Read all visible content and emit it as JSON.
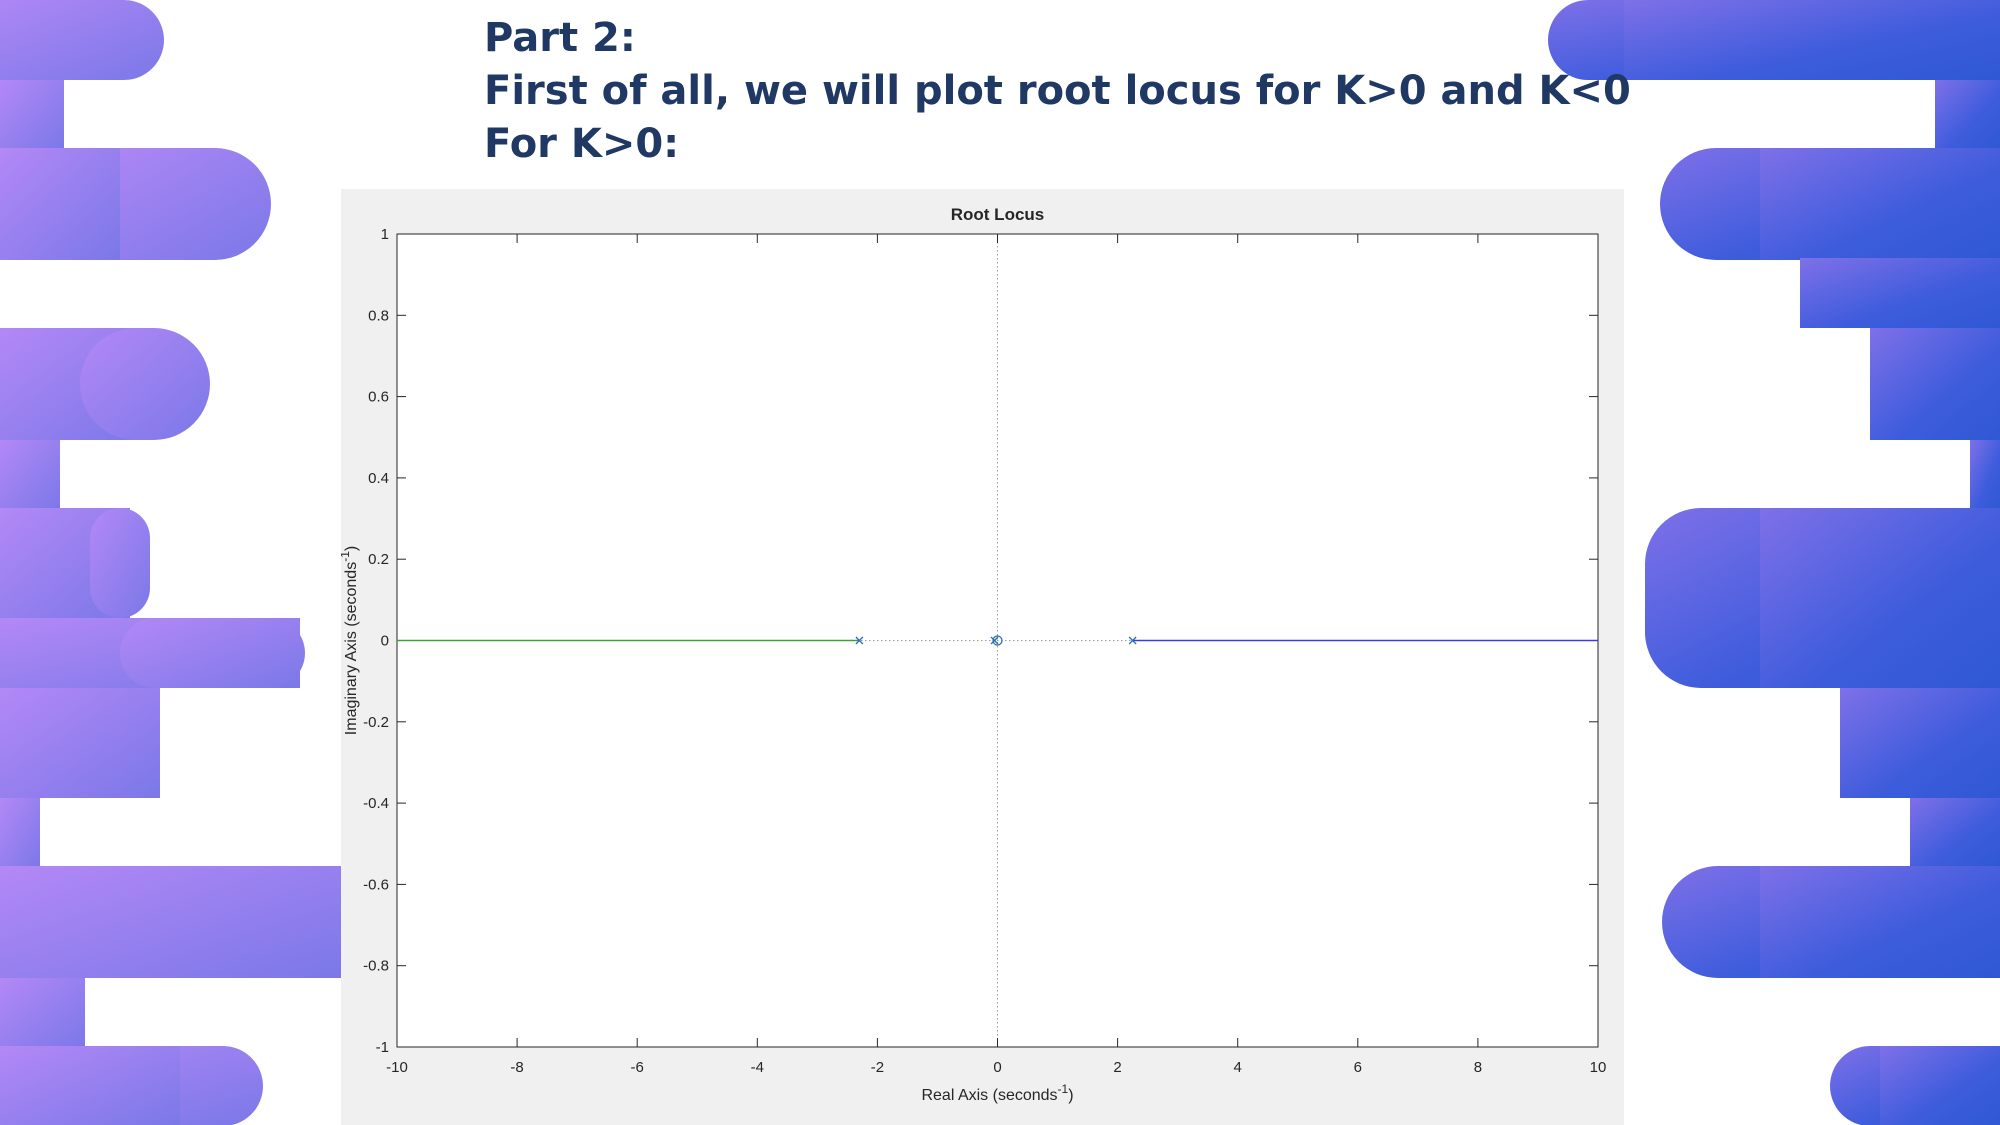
{
  "slide": {
    "heading_lines": [
      "Part 2:",
      "First of all, we will plot root locus for K>0 and K<0",
      "For K>0:"
    ]
  },
  "colors": {
    "heading": "#1f3864",
    "blob_gradient_start": "#b388f6",
    "blob_gradient_end": "#3158d6",
    "branch_left": "#3aa03a",
    "branch_right": "#3a3ae0",
    "markers": "#2a6fb3"
  },
  "chart_data": {
    "type": "line",
    "title": "Root Locus",
    "xlabel": "Real Axis (seconds",
    "xlabel_sup": "-1",
    "xlabel_tail": ")",
    "ylabel": "Imaginary Axis (seconds",
    "ylabel_sup": "-1",
    "ylabel_tail": ")",
    "xlim": [
      -10,
      10
    ],
    "ylim": [
      -1,
      1
    ],
    "xticks": [
      -10,
      -8,
      -6,
      -4,
      -2,
      0,
      2,
      4,
      6,
      8,
      10
    ],
    "yticks": [
      -1,
      -0.8,
      -0.6,
      -0.4,
      -0.2,
      0,
      0.2,
      0.4,
      0.6,
      0.8,
      1
    ],
    "grid": false,
    "series": [
      {
        "color": "#3aa03a",
        "x": [
          -10,
          -2.3
        ],
        "y": [
          0,
          0
        ]
      },
      {
        "color": "#3a3ae0",
        "x": [
          2.25,
          10
        ],
        "y": [
          0,
          0
        ]
      }
    ],
    "poles": [
      [
        -2.3,
        0
      ],
      [
        2.25,
        0
      ],
      [
        -0.05,
        0
      ]
    ],
    "zeros": [
      [
        0,
        0
      ]
    ],
    "dotted_axes": true
  }
}
